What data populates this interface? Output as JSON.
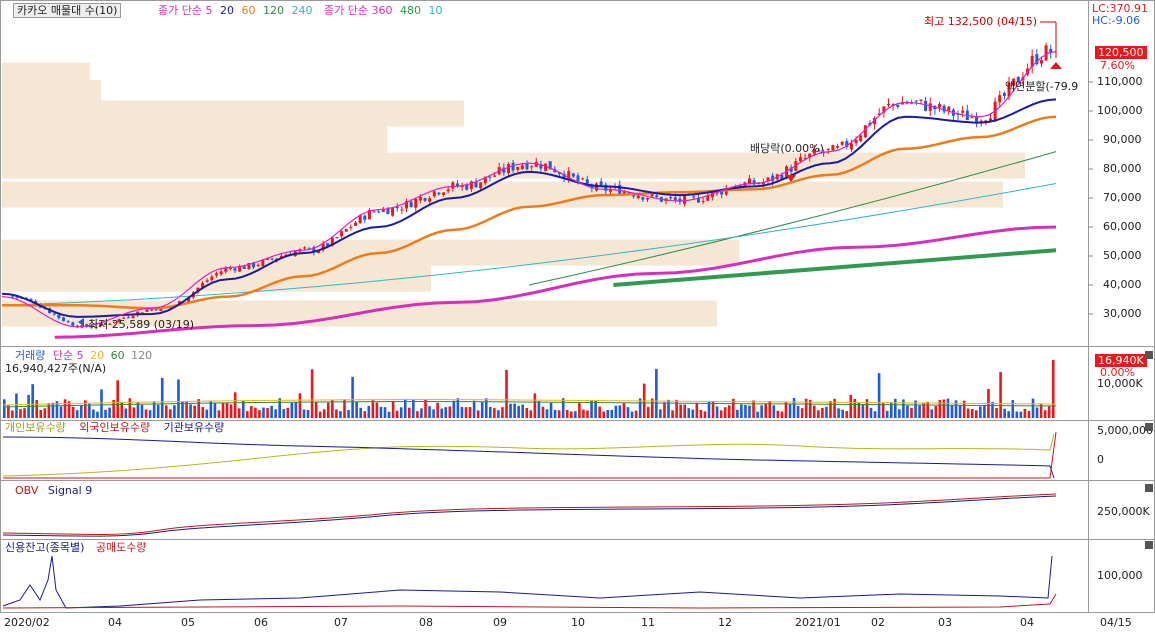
{
  "header": {
    "title": "카카오 매물대 수(10)",
    "ma_price_label": "종가 단순 5",
    "ma_price_periods": [
      "20",
      "60",
      "120",
      "240"
    ],
    "ma_price_label2": "종가 단순 360",
    "ma_price_periods2": [
      "480",
      "10"
    ]
  },
  "right_info": {
    "lc": "LC:370.91",
    "hc": "HC:-9.06",
    "current_price": "120,500",
    "change_pct": "7.60%"
  },
  "annotations": {
    "high": "최고 132,500 (04/15)",
    "low": "최저 25,589 (03/19)",
    "dividend": "배당락(0.00%)",
    "split": "액면분할(-79.9"
  },
  "price_axis": [
    "110,000",
    "100,000",
    "90,000",
    "80,000",
    "70,000",
    "60,000",
    "50,000",
    "40,000",
    "30,000"
  ],
  "volume_panel": {
    "label": "거래량",
    "ma_label": "단순 5",
    "ma_periods": [
      "20",
      "60",
      "120"
    ],
    "value_text": "16,940,427주(N/A)",
    "current": "16,940K",
    "pct": "0.00%",
    "axis": "10,000K"
  },
  "holdings_panel": {
    "series": [
      "개인보유수량",
      "외국인보유수량",
      "기관보유수량"
    ],
    "axis": [
      "5,000,000",
      "0"
    ]
  },
  "obv_panel": {
    "label": "OBV",
    "signal": "Signal 9",
    "axis": "250,000K"
  },
  "credit_panel": {
    "series": [
      "신용잔고(종목별)",
      "공매도수량"
    ],
    "axis": "100,000"
  },
  "x_axis": [
    "2020/02",
    "04",
    "05",
    "06",
    "07",
    "08",
    "09",
    "10",
    "11",
    "12",
    "2021/01",
    "02",
    "03",
    "04"
  ],
  "x_axis_right": "04/15",
  "colors": {
    "up": "#e8181b",
    "down": "#1f5bd6",
    "ma5": "#e01ccd",
    "ma20": "#1a1aa6",
    "ma60": "#f07b1a",
    "ma120": "#2c8a43",
    "ma240": "#31b6c8",
    "ma360": "#d62fbe",
    "ma480": "#2f9a52",
    "profile": "#f5e7d3"
  },
  "chart_data": {
    "type": "candlestick",
    "price_range": [
      22000,
      135000
    ],
    "months": [
      "2020/02",
      "04",
      "05",
      "06",
      "07",
      "08",
      "09",
      "10",
      "11",
      "12",
      "2021/01",
      "02",
      "03",
      "04"
    ],
    "close_path_dates": [
      "2020-02",
      "2020-03-19",
      "2020-04",
      "2020-05",
      "2020-06",
      "2020-07",
      "2020-08",
      "2020-09",
      "2020-10",
      "2020-11",
      "2020-12",
      "2021-01",
      "2021-02",
      "2021-03",
      "2021-04-15"
    ],
    "close_path": [
      36000,
      25589,
      32000,
      46000,
      52000,
      66000,
      74000,
      82000,
      73000,
      69000,
      75000,
      86000,
      103000,
      98000,
      120500
    ],
    "ma20_path": [
      37000,
      29000,
      30000,
      42000,
      51000,
      60000,
      70000,
      79000,
      74000,
      71000,
      74000,
      82000,
      98000,
      96000,
      104000
    ],
    "ma60_path": [
      33000,
      33000,
      32000,
      36000,
      43000,
      51000,
      59000,
      67000,
      71000,
      72000,
      73000,
      78000,
      87000,
      91000,
      98000
    ],
    "ma120_line": [
      [
        0.5,
        40000
      ],
      [
        1.0,
        86000
      ]
    ],
    "ma240_line": [
      [
        0.42,
        42000
      ],
      [
        1.0,
        75000
      ]
    ],
    "ma360_path": [
      22000,
      26000,
      34000,
      44000,
      53000,
      60000
    ],
    "ma480_segment": [
      40000,
      52000
    ],
    "volume_profile_rows": [
      {
        "price": 112000,
        "rel": 0.08
      },
      {
        "price": 106000,
        "rel": 0.09
      },
      {
        "price": 99000,
        "rel": 0.42
      },
      {
        "price": 90000,
        "rel": 0.35
      },
      {
        "price": 81000,
        "rel": 0.93
      },
      {
        "price": 71000,
        "rel": 0.91
      },
      {
        "price": 59000,
        "rel": 0.0
      },
      {
        "price": 51000,
        "rel": 0.67
      },
      {
        "price": 42000,
        "rel": 0.39
      },
      {
        "price": 30000,
        "rel": 0.65
      }
    ]
  }
}
